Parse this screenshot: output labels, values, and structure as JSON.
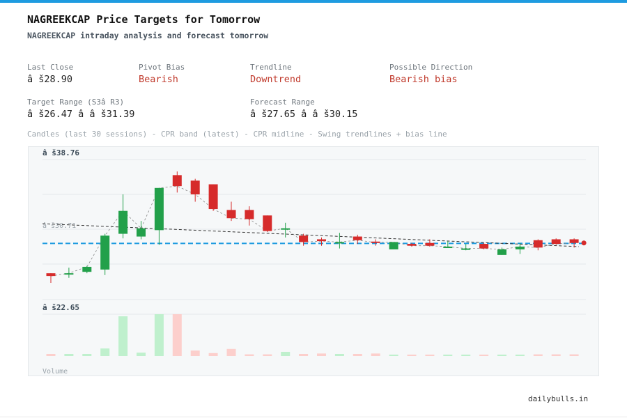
{
  "header": {
    "title": "NAGREEKCAP Price Targets for Tomorrow",
    "subtitle": "NAGREEKCAP intraday analysis and forecast tomorrow"
  },
  "metrics": {
    "last_close_label": "Last Close",
    "last_close_value": "â š28.90",
    "pivot_bias_label": "Pivot Bias",
    "pivot_bias_value": "Bearish",
    "trendline_label": "Trendline",
    "trendline_value": "Downtrend",
    "direction_label": "Possible Direction",
    "direction_value": "Bearish bias",
    "target_range_label": "Target Range (S3â  R3)",
    "target_range_value": "â š26.47 â   â š31.39",
    "forecast_range_label": "Forecast Range",
    "forecast_range_value": "â š27.65 â   â š30.15"
  },
  "legend_text": "Candles (last 30 sessions) - CPR band (latest) - CPR midline - Swing trendlines + bias line",
  "footer": {
    "brand": "dailybulls.in"
  },
  "colors": {
    "bull": "#22a04a",
    "bear": "#d62b2b",
    "bull_volume": "#bff0cd",
    "bear_volume": "#fccfcc",
    "cpr": "#1e9be0",
    "accent": "#1e9be0"
  },
  "chart_data": {
    "type": "candlestick",
    "price_top_label": "â š38.76",
    "price_bottom_label": "â š22.65",
    "cpr_label": "â š30.71",
    "volume_label": "Volume",
    "cpr_mid": 28.85,
    "last_close": 28.9,
    "ohlc": [
      [
        25.6,
        25.6,
        24.55,
        25.3
      ],
      [
        25.6,
        26.2,
        25.1,
        25.6
      ],
      [
        25.75,
        26.4,
        25.6,
        26.3
      ],
      [
        26.0,
        29.9,
        25.4,
        29.7
      ],
      [
        29.9,
        34.2,
        29.4,
        32.4
      ],
      [
        29.6,
        31.3,
        29.3,
        30.5
      ],
      [
        30.3,
        34.9,
        28.7,
        34.9
      ],
      [
        36.3,
        36.7,
        34.4,
        35.1
      ],
      [
        35.7,
        35.9,
        33.4,
        34.2
      ],
      [
        35.3,
        35.3,
        32.4,
        32.6
      ],
      [
        32.5,
        33.4,
        31.3,
        31.6
      ],
      [
        32.5,
        32.9,
        30.8,
        31.5
      ],
      [
        31.9,
        31.9,
        30.1,
        30.2
      ],
      [
        30.4,
        31.1,
        29.5,
        30.5
      ],
      [
        29.7,
        29.9,
        28.6,
        29.0
      ],
      [
        29.3,
        29.5,
        28.6,
        29.1
      ],
      [
        29.0,
        30.0,
        28.3,
        29.0
      ],
      [
        29.6,
        29.8,
        28.8,
        29.2
      ],
      [
        29.05,
        29.3,
        28.6,
        28.95
      ],
      [
        28.2,
        29.0,
        28.2,
        29.0
      ],
      [
        28.8,
        28.9,
        28.5,
        28.6
      ],
      [
        28.9,
        29.3,
        28.5,
        28.6
      ],
      [
        28.4,
        29.1,
        28.4,
        28.5
      ],
      [
        28.15,
        28.8,
        28.1,
        28.3
      ],
      [
        28.8,
        28.9,
        28.2,
        28.3
      ],
      [
        27.6,
        28.4,
        27.6,
        28.2
      ],
      [
        28.2,
        28.9,
        27.7,
        28.5
      ],
      [
        29.2,
        29.3,
        28.1,
        28.4
      ],
      [
        29.3,
        29.4,
        28.7,
        28.8
      ],
      [
        29.3,
        29.4,
        28.4,
        28.9
      ]
    ],
    "volume": [
      0.05,
      0.05,
      0.05,
      0.18,
      0.95,
      0.08,
      1.0,
      1.0,
      0.13,
      0.07,
      0.17,
      0.04,
      0.04,
      0.1,
      0.05,
      0.06,
      0.05,
      0.05,
      0.06,
      0.03,
      0.03,
      0.03,
      0.03,
      0.03,
      0.03,
      0.03,
      0.03,
      0.04,
      0.04,
      0.04
    ],
    "ylim": [
      22.65,
      38.76
    ]
  }
}
